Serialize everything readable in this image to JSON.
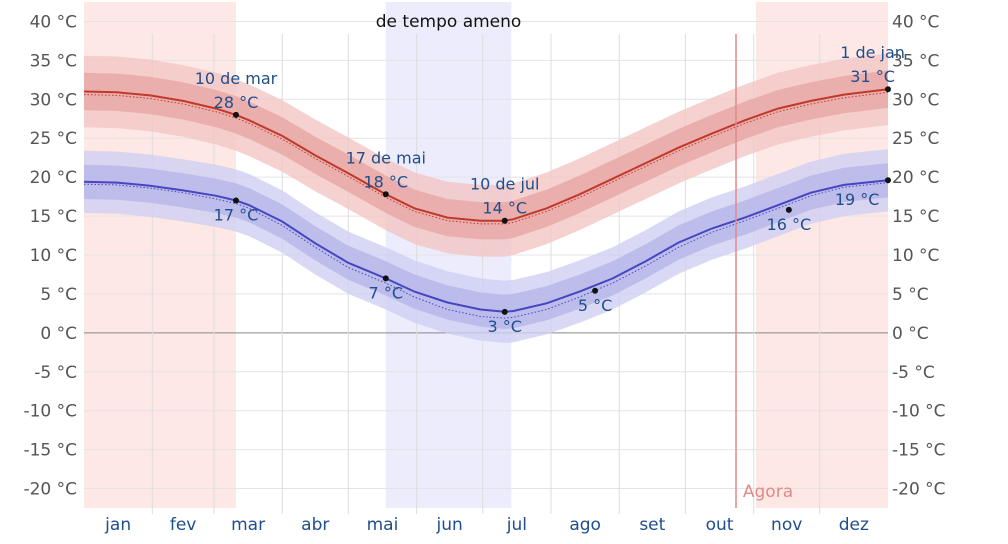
{
  "chart_data": {
    "type": "area",
    "title": "",
    "season_label": "de tempo ameno",
    "now_label": "Agora",
    "ylim": [
      -22.5,
      42.5
    ],
    "yticks": [
      "40 °C",
      "35 °C",
      "30 °C",
      "25 °C",
      "20 °C",
      "15 °C",
      "10 °C",
      "5 °C",
      "0 °C",
      "-5 °C",
      "-10 °C",
      "-15 °C",
      "-20 °C"
    ],
    "ytick_values": [
      40,
      35,
      30,
      25,
      20,
      15,
      10,
      5,
      0,
      -5,
      -10,
      -15,
      -20
    ],
    "months": [
      "jan",
      "fev",
      "mar",
      "abr",
      "mai",
      "jun",
      "jul",
      "ago",
      "set",
      "out",
      "nov",
      "dez"
    ],
    "month_centers_day": [
      15.5,
      45,
      74.5,
      105,
      135.5,
      166,
      196.5,
      227.5,
      258,
      288.5,
      319,
      349.5
    ],
    "month_boundaries_day": [
      31,
      59,
      90,
      120,
      151,
      181,
      212,
      243,
      273,
      304,
      334
    ],
    "warm_shading": [
      [
        0,
        69
      ],
      [
        305,
        365
      ]
    ],
    "mild_shading": [
      [
        137,
        194
      ]
    ],
    "now_day": 296,
    "x": [
      0,
      15,
      30,
      45,
      60,
      69,
      75,
      90,
      105,
      120,
      137,
      150,
      165,
      180,
      191,
      195,
      210,
      225,
      240,
      255,
      270,
      285,
      300,
      315,
      330,
      345,
      365
    ],
    "series": [
      {
        "kind": "high",
        "color": "#c0392b",
        "mean": [
          31.0,
          30.9,
          30.5,
          29.8,
          28.8,
          28.0,
          27.3,
          25.3,
          22.8,
          20.5,
          17.8,
          16.0,
          14.8,
          14.4,
          14.4,
          14.6,
          16.0,
          17.8,
          19.8,
          21.8,
          23.8,
          25.6,
          27.3,
          28.8,
          29.8,
          30.6,
          31.3
        ],
        "normal": [
          30.6,
          30.5,
          30.1,
          29.4,
          28.4,
          27.6,
          26.9,
          24.9,
          22.4,
          20.1,
          17.4,
          15.6,
          14.4,
          14.0,
          14.0,
          14.2,
          15.6,
          17.4,
          19.4,
          21.4,
          23.4,
          25.2,
          26.9,
          28.4,
          29.4,
          30.2,
          30.9
        ],
        "inner_band": [
          2.4,
          2.4,
          2.4,
          2.4,
          2.4,
          2.4,
          2.4,
          2.4,
          2.4,
          2.4,
          2.4,
          2.4,
          2.4,
          2.4,
          2.4,
          2.4,
          2.4,
          2.4,
          2.4,
          2.4,
          2.4,
          2.4,
          2.4,
          2.4,
          2.4,
          2.4,
          2.4
        ],
        "outer_band": [
          4.6,
          4.6,
          4.6,
          4.6,
          4.6,
          4.6,
          4.6,
          4.6,
          4.6,
          4.6,
          4.6,
          4.6,
          4.6,
          4.6,
          4.6,
          4.6,
          4.6,
          4.6,
          4.6,
          4.6,
          4.6,
          4.6,
          4.6,
          4.6,
          4.6,
          4.6,
          4.6
        ]
      },
      {
        "kind": "low",
        "color": "#4646c0",
        "mean": [
          19.4,
          19.3,
          18.9,
          18.3,
          17.6,
          17.0,
          16.4,
          14.3,
          11.5,
          9.0,
          7.0,
          5.3,
          3.9,
          3.0,
          2.7,
          2.8,
          3.8,
          5.3,
          7.0,
          9.2,
          11.6,
          13.4,
          14.8,
          16.4,
          18.0,
          19.0,
          19.6
        ],
        "normal": [
          19.1,
          19.0,
          18.6,
          18.0,
          17.2,
          16.6,
          16.0,
          13.8,
          11.0,
          8.4,
          6.4,
          4.6,
          3.0,
          2.1,
          1.9,
          2.0,
          3.0,
          4.6,
          6.4,
          8.6,
          11.0,
          12.9,
          14.4,
          16.0,
          17.6,
          18.7,
          19.3
        ],
        "inner_band": [
          2.2,
          2.2,
          2.2,
          2.2,
          2.2,
          2.2,
          2.2,
          2.2,
          2.2,
          2.2,
          2.2,
          2.2,
          2.2,
          2.2,
          2.2,
          2.2,
          2.2,
          2.2,
          2.2,
          2.2,
          2.2,
          2.2,
          2.2,
          2.2,
          2.2,
          2.2,
          2.2
        ],
        "outer_band": [
          4.0,
          4.0,
          4.0,
          4.0,
          4.0,
          4.0,
          4.0,
          4.0,
          4.0,
          4.0,
          4.0,
          4.0,
          4.0,
          4.0,
          4.0,
          4.0,
          4.0,
          4.0,
          4.0,
          4.0,
          4.0,
          4.0,
          4.0,
          4.0,
          4.0,
          4.0,
          4.0
        ]
      }
    ],
    "markers": [
      {
        "day": 69,
        "value": 28.0,
        "series": "high"
      },
      {
        "day": 137,
        "value": 17.8,
        "series": "high"
      },
      {
        "day": 191,
        "value": 14.4,
        "series": "high"
      },
      {
        "day": 365,
        "value": 31.3,
        "series": "high"
      },
      {
        "day": 69,
        "value": 17.0,
        "series": "low"
      },
      {
        "day": 137,
        "value": 7.0,
        "series": "low"
      },
      {
        "day": 191,
        "value": 2.7,
        "series": "low"
      },
      {
        "day": 232,
        "value": 5.4,
        "series": "low"
      },
      {
        "day": 320,
        "value": 15.8,
        "series": "low"
      },
      {
        "day": 365,
        "value": 19.6,
        "series": "low"
      }
    ],
    "annotations": [
      {
        "day": 69,
        "value": 28.0,
        "position": "above",
        "lines": [
          "10 de mar",
          "28 °C"
        ]
      },
      {
        "day": 137,
        "value": 17.8,
        "position": "above",
        "lines": [
          "17 de mai",
          "18 °C"
        ]
      },
      {
        "day": 191,
        "value": 14.4,
        "position": "above",
        "lines": [
          "10 de jul",
          "14 °C"
        ]
      },
      {
        "day": 358,
        "value": 31.3,
        "position": "above",
        "lines": [
          "1 de jan",
          "31 °C"
        ]
      },
      {
        "day": 69,
        "value": 17.0,
        "position": "below",
        "lines": [
          "17 °C"
        ]
      },
      {
        "day": 137,
        "value": 7.0,
        "position": "below",
        "lines": [
          "7 °C"
        ]
      },
      {
        "day": 191,
        "value": 2.7,
        "position": "below",
        "lines": [
          "3 °C"
        ]
      },
      {
        "day": 232,
        "value": 5.4,
        "position": "below",
        "lines": [
          "5 °C"
        ]
      },
      {
        "day": 320,
        "value": 15.8,
        "position": "below",
        "lines": [
          "16 °C"
        ]
      },
      {
        "day": 351,
        "value": 19.0,
        "position": "below",
        "lines": [
          "19 °C"
        ]
      }
    ]
  }
}
